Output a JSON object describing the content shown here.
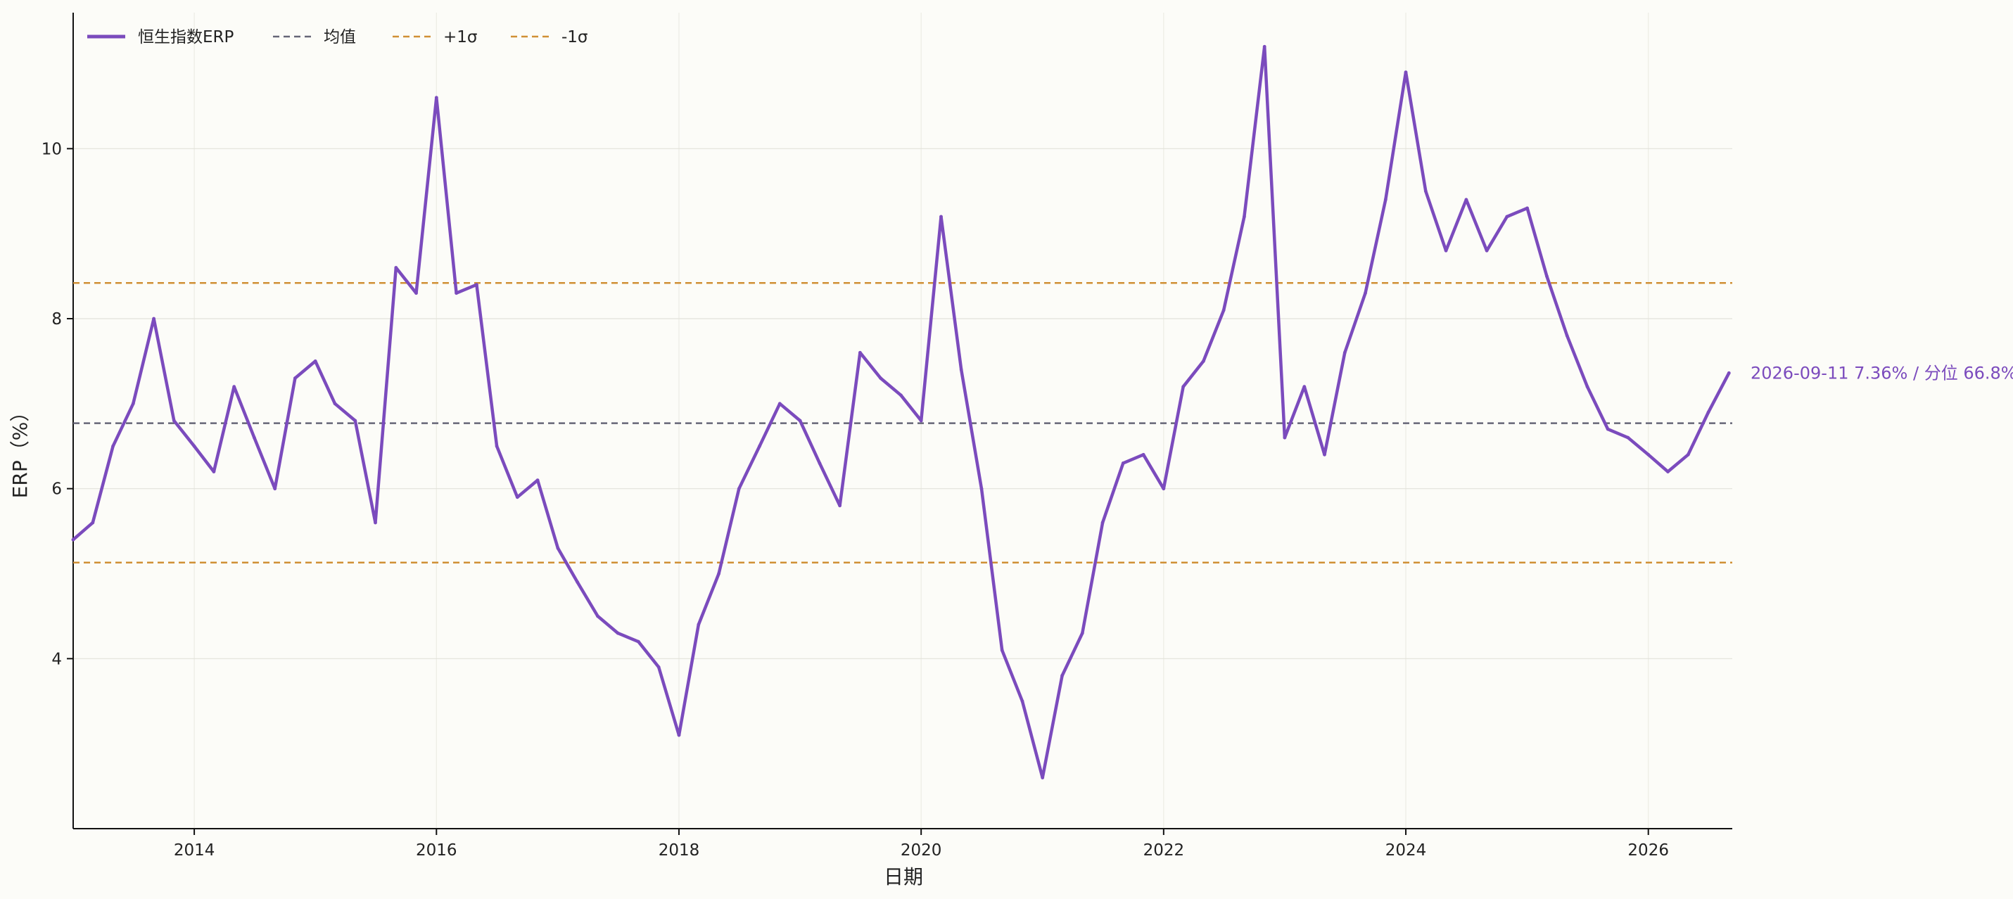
{
  "chart_data": {
    "type": "line",
    "xlabel": "日期",
    "ylabel": "ERP（%）",
    "xlim": [
      "2013-01-01",
      "2026-09-11"
    ],
    "ylim": [
      2.0,
      11.6
    ],
    "grid": true,
    "legend_position": "top-left",
    "x_ticks": [
      "2014",
      "2016",
      "2018",
      "2020",
      "2022",
      "2024",
      "2026"
    ],
    "y_ticks": [
      4,
      6,
      8,
      10
    ],
    "series": [
      {
        "name": "恒生指数ERP",
        "color": "#7b4bbd",
        "x": [
          "2013-01",
          "2013-03",
          "2013-05",
          "2013-07",
          "2013-09",
          "2013-11",
          "2014-01",
          "2014-03",
          "2014-05",
          "2014-07",
          "2014-09",
          "2014-11",
          "2015-01",
          "2015-03",
          "2015-05",
          "2015-07",
          "2015-09",
          "2015-11",
          "2016-01",
          "2016-03",
          "2016-05",
          "2016-07",
          "2016-09",
          "2016-11",
          "2017-01",
          "2017-03",
          "2017-05",
          "2017-07",
          "2017-09",
          "2017-11",
          "2018-01",
          "2018-03",
          "2018-05",
          "2018-07",
          "2018-09",
          "2018-11",
          "2019-01",
          "2019-03",
          "2019-05",
          "2019-07",
          "2019-09",
          "2019-11",
          "2020-01",
          "2020-03",
          "2020-05",
          "2020-07",
          "2020-09",
          "2020-11",
          "2021-01",
          "2021-03",
          "2021-05",
          "2021-07",
          "2021-09",
          "2021-11",
          "2022-01",
          "2022-03",
          "2022-05",
          "2022-07",
          "2022-09",
          "2022-11",
          "2023-01",
          "2023-03",
          "2023-05",
          "2023-07",
          "2023-09",
          "2023-11",
          "2024-01",
          "2024-03",
          "2024-05",
          "2024-07",
          "2024-09",
          "2024-11",
          "2025-01",
          "2025-03",
          "2025-05",
          "2025-07",
          "2025-09",
          "2025-11",
          "2026-01",
          "2026-03",
          "2026-05",
          "2026-07",
          "2026-09"
        ],
        "values": [
          5.4,
          5.6,
          6.5,
          7.0,
          8.0,
          6.8,
          6.5,
          6.2,
          7.2,
          6.6,
          6.0,
          7.3,
          7.5,
          7.0,
          6.8,
          5.6,
          8.6,
          8.3,
          10.6,
          8.3,
          8.4,
          6.5,
          5.9,
          6.1,
          5.3,
          4.9,
          4.5,
          4.3,
          4.2,
          3.9,
          3.1,
          4.4,
          5.0,
          6.0,
          6.5,
          7.0,
          6.8,
          6.3,
          5.8,
          7.6,
          7.3,
          7.1,
          6.8,
          9.2,
          7.4,
          6.0,
          4.1,
          3.5,
          2.6,
          3.8,
          4.3,
          5.6,
          6.3,
          6.4,
          6.0,
          7.2,
          7.5,
          8.1,
          9.2,
          11.2,
          6.6,
          7.2,
          6.4,
          7.6,
          8.3,
          9.4,
          10.9,
          9.5,
          8.8,
          9.4,
          8.8,
          9.2,
          9.3,
          8.5,
          7.8,
          7.2,
          6.7,
          6.6,
          6.4,
          6.2,
          6.4,
          6.9,
          7.36
        ]
      }
    ],
    "reference_lines": [
      {
        "name": "均值",
        "value": 6.77,
        "color": "#666677"
      },
      {
        "name": "+1σ",
        "value": 8.42,
        "color": "#d09035"
      },
      {
        "name": "-1σ",
        "value": 5.13,
        "color": "#d09035"
      }
    ],
    "annotation": {
      "text": "2026-09-11  7.36% / 分位 66.8%",
      "color": "#7b4bbd"
    }
  }
}
